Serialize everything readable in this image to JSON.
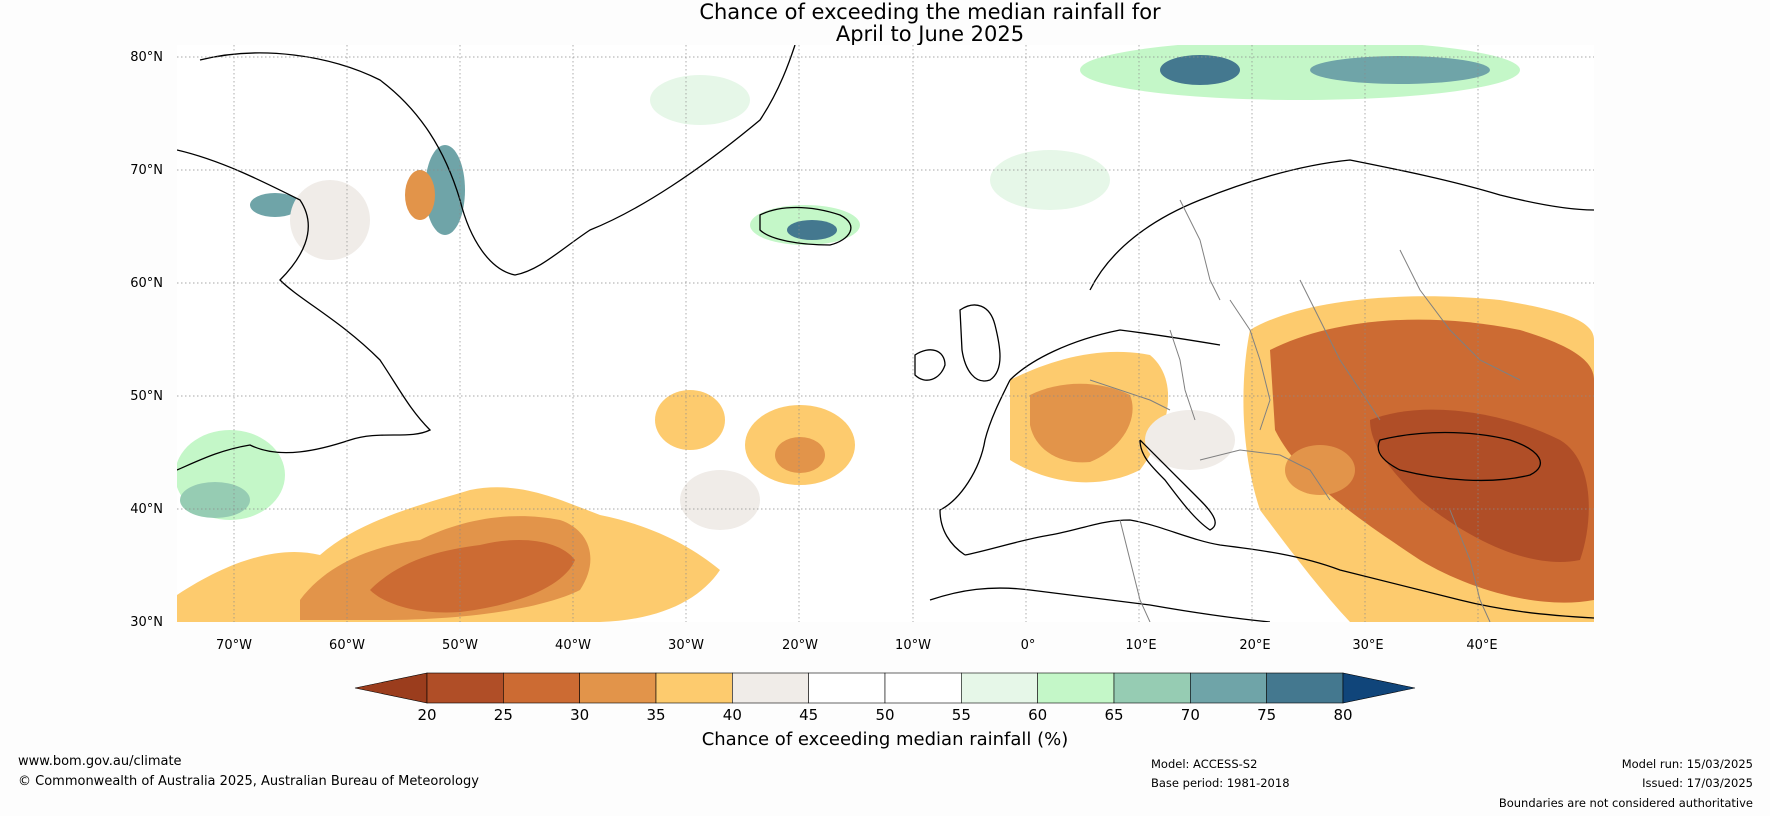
{
  "title": [
    "Chance of exceeding the median rainfall for",
    "April to June 2025"
  ],
  "map": {
    "lat_ticks": [
      "80°N",
      "70°N",
      "60°N",
      "50°N",
      "40°N",
      "30°N"
    ],
    "lon_ticks": [
      "70°W",
      "60°W",
      "50°W",
      "40°W",
      "30°W",
      "20°W",
      "10°W",
      "0°",
      "10°E",
      "20°E",
      "30°E",
      "40°E"
    ],
    "extent": {
      "lon": [
        -75,
        50
      ],
      "lat": [
        30,
        81
      ]
    }
  },
  "colorbar": {
    "tick_labels": [
      "20",
      "25",
      "30",
      "35",
      "40",
      "45",
      "50",
      "55",
      "60",
      "65",
      "70",
      "75",
      "80"
    ],
    "colors": [
      "#9b3d1d",
      "#b04e27",
      "#cc6b33",
      "#e2944a",
      "#fdcb6e",
      "#f0ece8",
      "#ffffff",
      "#ffffff",
      "#e6f7e8",
      "#c4f7c8",
      "#96ccb3",
      "#6fa4a8",
      "#44788f",
      "#10457a"
    ],
    "label": "Chance of exceeding median rainfall (%)"
  },
  "footer": {
    "url": "www.bom.gov.au/climate",
    "copyright": "© Commonwealth of Australia 2025, Australian Bureau of Meteorology",
    "model": "Model: ACCESS-S2",
    "base_period": "Base period: 1981-2018",
    "model_run": "Model run: 15/03/2025",
    "issued": "Issued: 17/03/2025",
    "disclaimer": "Boundaries are not considered authoritative"
  }
}
